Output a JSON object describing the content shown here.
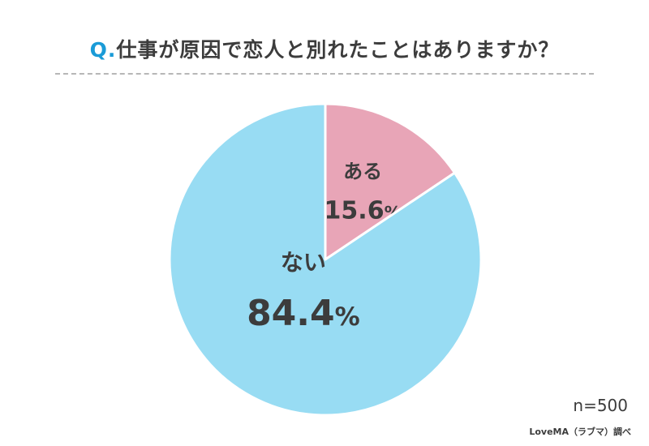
{
  "header": {
    "q_marker": "Q.",
    "question": "仕事が原因で恋人と別れたことはありますか？"
  },
  "sample_size": "n=500",
  "source": "LoveMA（ラブマ）調べ",
  "colors": {
    "accent": "#1a9bd7",
    "yes": "#e8a5b7",
    "no": "#98dcf3",
    "label": "#3c3c3c"
  },
  "chart_data": {
    "type": "pie",
    "title": "仕事が原因で恋人と別れたことはありますか？",
    "start": "12 o'clock",
    "direction": "clockwise",
    "slices": [
      {
        "label": "ある",
        "value": 15.6,
        "display": "15.6",
        "unit": "%",
        "color": "#e8a5b7"
      },
      {
        "label": "ない",
        "value": 84.4,
        "display": "84.4",
        "unit": "%",
        "color": "#98dcf3"
      }
    ]
  }
}
